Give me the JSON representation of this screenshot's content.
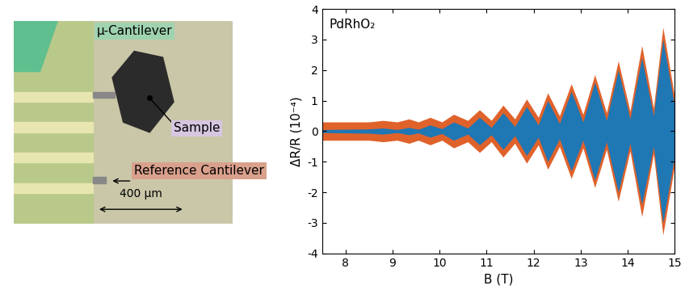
{
  "chart_data": {
    "type": "area",
    "annotation": "PdRhO₂",
    "x_label": "B (T)",
    "y_label": "ΔR/R (10⁻⁴)",
    "xlim": [
      7.5,
      15
    ],
    "ylim": [
      -4,
      4
    ],
    "xticks": [
      8,
      9,
      10,
      11,
      12,
      13,
      14,
      15
    ],
    "yticks": [
      -4,
      -3,
      -2,
      -1,
      0,
      1,
      2,
      3,
      4
    ],
    "grid": false,
    "series": [
      {
        "color": "#e0622b",
        "x": [
          7.5,
          8.0,
          8.5,
          8.8,
          9.1,
          9.35,
          9.55,
          9.8,
          10.05,
          10.3,
          10.6,
          10.85,
          11.1,
          11.35,
          11.6,
          11.85,
          12.1,
          12.3,
          12.55,
          12.8,
          13.05,
          13.3,
          13.55,
          13.8,
          14.05,
          14.3,
          14.55,
          14.75,
          15.0
        ],
        "values": [
          0.3,
          0.3,
          0.3,
          0.35,
          0.3,
          0.4,
          0.3,
          0.45,
          0.3,
          0.55,
          0.35,
          0.7,
          0.35,
          0.85,
          0.4,
          1.05,
          0.45,
          1.25,
          0.5,
          1.55,
          0.55,
          1.85,
          0.6,
          2.3,
          0.65,
          2.8,
          0.75,
          3.4,
          1.1
        ]
      },
      {
        "color": "#1f77b4",
        "x": [
          7.5,
          8.0,
          8.5,
          8.8,
          9.1,
          9.35,
          9.55,
          9.8,
          10.05,
          10.3,
          10.6,
          10.85,
          11.1,
          11.35,
          11.6,
          11.85,
          12.1,
          12.3,
          12.55,
          12.8,
          13.05,
          13.3,
          13.55,
          13.8,
          14.05,
          14.3,
          14.55,
          14.75,
          15.0
        ],
        "values": [
          0.05,
          0.06,
          0.07,
          0.1,
          0.05,
          0.12,
          0.06,
          0.2,
          0.08,
          0.3,
          0.1,
          0.45,
          0.12,
          0.6,
          0.15,
          0.8,
          0.2,
          1.0,
          0.25,
          1.3,
          0.3,
          1.6,
          0.35,
          2.0,
          0.4,
          2.4,
          0.5,
          3.0,
          0.8
        ]
      }
    ]
  },
  "image": {
    "labels": [
      "μ-Cantilever",
      "Sample",
      "Reference Cantilever"
    ],
    "scale_bar": "400 μm"
  }
}
